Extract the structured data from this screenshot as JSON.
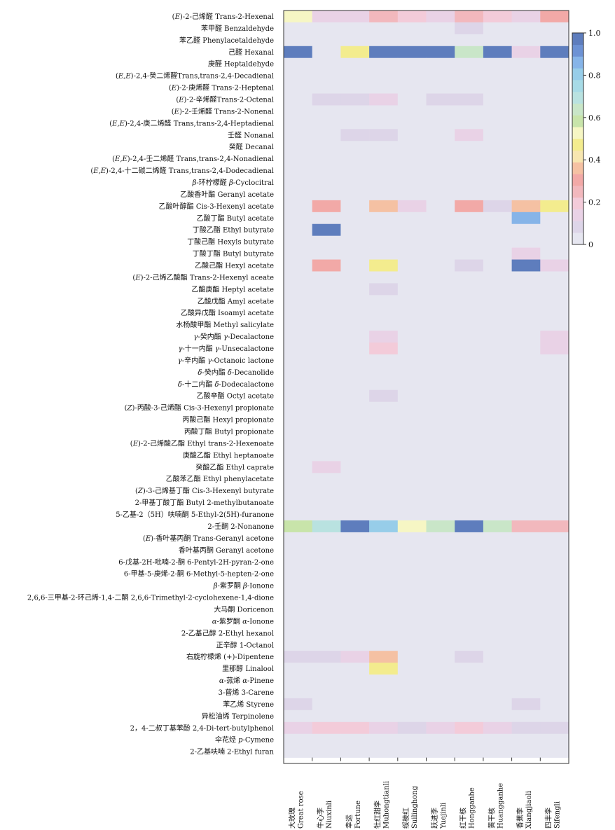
{
  "chart_data": {
    "type": "heatmap",
    "colorbar": {
      "min": 0,
      "max": 1,
      "ticks": [
        "0",
        "0.2",
        "0.4",
        "0.6",
        "0.8",
        "1.0"
      ],
      "colors": [
        "#e6e6f0",
        "#ddd5e8",
        "#e9d2e6",
        "#f3cbd9",
        "#f2b8bd",
        "#f2a9a7",
        "#f5c1a3",
        "#f7e6b0",
        "#f3ec8e",
        "#f6f6c4",
        "#c8e4aa",
        "#c9e6c8",
        "#b9e2e0",
        "#a7dbe6",
        "#97cde9",
        "#86b4e8",
        "#6d92d4",
        "#5e7dbd"
      ]
    },
    "columns": [
      {
        "zh": "大玫瑰",
        "en": "Great rose"
      },
      {
        "zh": "牛心李",
        "en": "Niuxinli"
      },
      {
        "zh": "幸运",
        "en": "Fortune"
      },
      {
        "zh": "牡红甜李",
        "en": "Muhongtianli"
      },
      {
        "zh": "绥棱红",
        "en": "Suilinghong"
      },
      {
        "zh": "跃进李",
        "en": "Yuejinli"
      },
      {
        "zh": "红干核",
        "en": "Hongganhe"
      },
      {
        "zh": "黄干核",
        "en": "Huangganhe"
      },
      {
        "zh": "香蕉李",
        "en": "Xiangjiaoli"
      },
      {
        "zh": "四丰李",
        "en": "Sifengli"
      }
    ],
    "rows": [
      {
        "label": "(E)-2-己烯醛 Trans-2-Hexenal",
        "values": [
          0.5,
          0.15,
          0.15,
          0.27,
          0.2,
          0.15,
          0.24,
          0.18,
          0.15,
          0.3
        ]
      },
      {
        "label": "苯甲醛 Benzaldehyde",
        "values": [
          0,
          0,
          0,
          0.05,
          0,
          0.05,
          0.1,
          0.05,
          0,
          0
        ]
      },
      {
        "label": "苯乙醛 Phenylacetaldehyde",
        "values": [
          0,
          0,
          0,
          0,
          0,
          0,
          0,
          0,
          0,
          0
        ]
      },
      {
        "label": "己醛 Hexanal",
        "values": [
          0.98,
          0,
          0.46,
          0.98,
          0.98,
          0.98,
          0.62,
          0.98,
          0.15,
          0.98
        ]
      },
      {
        "label": "庚醛 Heptaldehyde",
        "values": [
          0,
          0,
          0,
          0,
          0,
          0,
          0,
          0,
          0,
          0
        ]
      },
      {
        "label": "(E,E)-2,4-癸二烯醛Trans,trans-2,4-Decadienal",
        "values": [
          0,
          0,
          0,
          0,
          0,
          0,
          0,
          0,
          0,
          0
        ]
      },
      {
        "label": "(E)-2-庚烯醛 Trans-2-Heptenal",
        "values": [
          0,
          0.05,
          0,
          0.05,
          0,
          0,
          0,
          0,
          0,
          0
        ]
      },
      {
        "label": "(E)-2-辛烯醛Trans-2-Octenal",
        "values": [
          0,
          0.1,
          0.1,
          0.15,
          0.05,
          0.1,
          0.1,
          0.05,
          0,
          0.05
        ]
      },
      {
        "label": "(E)-2-壬烯醛 Trans-2-Nonenal",
        "values": [
          0,
          0,
          0,
          0,
          0,
          0,
          0,
          0,
          0,
          0
        ]
      },
      {
        "label": "(E,E)-2,4-庚二烯醛 Trans,trans-2,4-Heptadienal",
        "values": [
          0,
          0,
          0,
          0.05,
          0,
          0,
          0.05,
          0,
          0,
          0
        ]
      },
      {
        "label": "壬醛 Nonanal",
        "values": [
          0.05,
          0.05,
          0.1,
          0.1,
          0,
          0.05,
          0.15,
          0.05,
          0,
          0
        ]
      },
      {
        "label": "癸醛 Decanal",
        "values": [
          0,
          0,
          0,
          0.05,
          0,
          0,
          0,
          0,
          0,
          0
        ]
      },
      {
        "label": "(E,E)-2,4-壬二烯醛 Trans,trans-2,4-Nonadienal",
        "values": [
          0,
          0,
          0,
          0,
          0,
          0,
          0,
          0,
          0,
          0
        ]
      },
      {
        "label": "(E,E)-2,4-十二碳二烯醛 Trans,trans-2,4-Dodecadienal",
        "values": [
          0,
          0,
          0,
          0,
          0,
          0,
          0,
          0,
          0,
          0
        ]
      },
      {
        "label": "β-环柠檬醛 β-Cyclocitral",
        "values": [
          0,
          0,
          0,
          0,
          0,
          0.05,
          0.05,
          0,
          0,
          0
        ]
      },
      {
        "label": "乙酸香叶酯 Geranyl acetate",
        "values": [
          0,
          0,
          0,
          0,
          0,
          0,
          0,
          0,
          0,
          0
        ]
      },
      {
        "label": "乙酸叶醇酯 Cis-3-Hexenyl acetate",
        "values": [
          0,
          0.28,
          0,
          0.35,
          0.15,
          0,
          0.28,
          0.1,
          0.38,
          0.46
        ]
      },
      {
        "label": "乙酸丁酯 Butyl acetate",
        "values": [
          0,
          0,
          0,
          0,
          0,
          0,
          0,
          0,
          0.88,
          0
        ]
      },
      {
        "label": "丁酸乙酯 Ethyl butyrate",
        "values": [
          0,
          0.98,
          0,
          0,
          0,
          0,
          0,
          0,
          0,
          0
        ]
      },
      {
        "label": "丁酸己酯 Hexyls butyrate",
        "values": [
          0,
          0.05,
          0,
          0,
          0,
          0,
          0,
          0,
          0.05,
          0
        ]
      },
      {
        "label": "丁酸丁酯 Butyl butyrate",
        "values": [
          0,
          0,
          0,
          0,
          0,
          0,
          0,
          0,
          0.15,
          0
        ]
      },
      {
        "label": "乙酸己酯 Hexyl acetate",
        "values": [
          0,
          0.28,
          0,
          0.48,
          0,
          0,
          0.1,
          0,
          0.98,
          0.15
        ]
      },
      {
        "label": "(E)-2-己烯乙酸酯 Trans-2-Hexenyl aceate",
        "values": [
          0,
          0,
          0,
          0.05,
          0,
          0,
          0,
          0,
          0,
          0
        ]
      },
      {
        "label": "乙酸庚酯 Heptyl acetate",
        "values": [
          0,
          0,
          0,
          0.1,
          0,
          0,
          0,
          0,
          0,
          0
        ]
      },
      {
        "label": "乙酸戊酯 Amyl acetate",
        "values": [
          0,
          0,
          0,
          0,
          0,
          0,
          0,
          0,
          0,
          0
        ]
      },
      {
        "label": "乙酸异戊酯 Isoamyl acetate",
        "values": [
          0,
          0.05,
          0,
          0,
          0,
          0,
          0,
          0,
          0,
          0
        ]
      },
      {
        "label": "水杨酸甲酯 Methyl salicylate",
        "values": [
          0,
          0,
          0,
          0,
          0,
          0,
          0,
          0,
          0,
          0
        ]
      },
      {
        "label": "γ-癸内酯 γ-Decalactone",
        "values": [
          0,
          0.05,
          0,
          0.15,
          0,
          0,
          0,
          0,
          0,
          0.15
        ]
      },
      {
        "label": "γ-十一内酯 γ-Unsecalactone",
        "values": [
          0,
          0,
          0,
          0.2,
          0,
          0,
          0,
          0,
          0,
          0.12
        ]
      },
      {
        "label": "γ-辛内酯 γ-Octanoic lactone",
        "values": [
          0,
          0,
          0,
          0,
          0,
          0,
          0,
          0,
          0,
          0
        ]
      },
      {
        "label": "δ-癸内酯 δ-Decanolide",
        "values": [
          0,
          0,
          0,
          0,
          0,
          0,
          0,
          0,
          0,
          0
        ]
      },
      {
        "label": "δ-十二内酯 δ-Dodecalactone",
        "values": [
          0,
          0,
          0,
          0,
          0,
          0,
          0,
          0,
          0,
          0
        ]
      },
      {
        "label": "乙酸辛酯 Octyl acetate",
        "values": [
          0,
          0,
          0,
          0.1,
          0,
          0.05,
          0,
          0,
          0,
          0
        ]
      },
      {
        "label": "(Z)-丙酸-3-己烯酯 Cis-3-Hexenyl propionate",
        "values": [
          0,
          0,
          0,
          0,
          0,
          0,
          0,
          0,
          0,
          0
        ]
      },
      {
        "label": "丙酸己酯 Hexyl propionate",
        "values": [
          0,
          0,
          0,
          0,
          0,
          0,
          0,
          0,
          0,
          0
        ]
      },
      {
        "label": "丙酸丁酯 Butyl propionate",
        "values": [
          0,
          0,
          0,
          0,
          0,
          0,
          0,
          0,
          0.05,
          0
        ]
      },
      {
        "label": "(E)-2-己烯酸乙酯 Ethyl trans-2-Hexenoate",
        "values": [
          0,
          0.05,
          0,
          0,
          0,
          0,
          0,
          0,
          0,
          0
        ]
      },
      {
        "label": "庚酸乙酯 Ethyl heptanoate",
        "values": [
          0,
          0.05,
          0,
          0,
          0,
          0,
          0,
          0,
          0,
          0
        ]
      },
      {
        "label": "癸酸乙酯 Ethyl caprate",
        "values": [
          0,
          0.12,
          0,
          0,
          0,
          0,
          0,
          0,
          0,
          0
        ]
      },
      {
        "label": "乙酸苯乙酯 Ethyl phenylacetate",
        "values": [
          0,
          0,
          0,
          0,
          0,
          0,
          0,
          0,
          0,
          0
        ]
      },
      {
        "label": "(Z)-3-己烯基丁酯 Cis-3-Hexenyl butyrate",
        "values": [
          0,
          0,
          0,
          0,
          0,
          0,
          0,
          0,
          0,
          0
        ]
      },
      {
        "label": "2-甲基丁酸丁酯 Butyl 2-methylbutanoate",
        "values": [
          0,
          0,
          0,
          0,
          0,
          0,
          0,
          0,
          0,
          0
        ]
      },
      {
        "label": "5-乙基-2（5H）呋喃酮 5-Ethyl-2(5H)-furanone",
        "values": [
          0,
          0,
          0,
          0.05,
          0,
          0,
          0,
          0,
          0,
          0
        ]
      },
      {
        "label": "2-壬酮 2-Nonanone",
        "values": [
          0.56,
          0.7,
          0.98,
          0.78,
          0.5,
          0.65,
          0.98,
          0.65,
          0.25,
          0.25
        ]
      },
      {
        "label": "(E)-香叶基丙酮 Trans-Geranyl acetone",
        "values": [
          0,
          0,
          0,
          0,
          0,
          0,
          0,
          0,
          0,
          0
        ]
      },
      {
        "label": "香叶基丙酮 Geranyl acetone",
        "values": [
          0,
          0,
          0,
          0,
          0,
          0,
          0.05,
          0.05,
          0,
          0
        ]
      },
      {
        "label": "6-戊基-2H-吡喃-2-酮 6-Pentyl-2H-pyran-2-one",
        "values": [
          0,
          0,
          0,
          0,
          0,
          0,
          0,
          0,
          0,
          0
        ]
      },
      {
        "label": "6-甲基-5-庚烯-2-酮 6-Methyl-5-hepten-2-one",
        "values": [
          0,
          0,
          0,
          0,
          0,
          0,
          0,
          0,
          0,
          0
        ]
      },
      {
        "label": "β-紫罗酮 β-Ionone",
        "values": [
          0,
          0,
          0,
          0,
          0,
          0.05,
          0.05,
          0,
          0,
          0
        ]
      },
      {
        "label": "2,6,6-三甲基-2-环己烯-1,4-二酮 2,6,6-Trimethyl-2-cyclohexene-1,4-dione",
        "values": [
          0,
          0,
          0,
          0,
          0,
          0,
          0.05,
          0,
          0,
          0
        ]
      },
      {
        "label": "大马酮 Doricenon",
        "values": [
          0.05,
          0,
          0.05,
          0,
          0,
          0,
          0,
          0,
          0,
          0
        ]
      },
      {
        "label": "α-紫罗酮 α-Ionone",
        "values": [
          0,
          0,
          0,
          0,
          0,
          0,
          0,
          0,
          0,
          0
        ]
      },
      {
        "label": "2-乙基己醇 2-Ethyl hexanol",
        "values": [
          0,
          0,
          0,
          0,
          0,
          0,
          0,
          0,
          0,
          0
        ]
      },
      {
        "label": "正辛醇 1-Octanol",
        "values": [
          0,
          0,
          0,
          0,
          0,
          0,
          0,
          0,
          0,
          0
        ]
      },
      {
        "label": "右旋柠檬烯 (+)-Dipentene",
        "values": [
          0.1,
          0.1,
          0.15,
          0.35,
          0,
          0.05,
          0.1,
          0.05,
          0,
          0
        ]
      },
      {
        "label": "里那醇 Linalool",
        "values": [
          0,
          0,
          0.05,
          0.46,
          0,
          0,
          0.05,
          0,
          0,
          0
        ]
      },
      {
        "label": "α-蒎烯 α-Pinene",
        "values": [
          0,
          0,
          0,
          0,
          0,
          0,
          0,
          0,
          0,
          0
        ]
      },
      {
        "label": "3-蒈烯 3-Carene",
        "values": [
          0,
          0,
          0,
          0,
          0,
          0,
          0,
          0,
          0,
          0
        ]
      },
      {
        "label": "苯乙烯 Styrene",
        "values": [
          0.1,
          0,
          0,
          0,
          0,
          0,
          0,
          0,
          0.1,
          0
        ]
      },
      {
        "label": "异松油烯 Terpinolene",
        "values": [
          0,
          0,
          0,
          0,
          0,
          0,
          0,
          0,
          0,
          0
        ]
      },
      {
        "label": "2，4-二叔丁基苯酚 2,4-Di-tert-butylphenol",
        "values": [
          0.12,
          0.2,
          0.2,
          0.15,
          0.1,
          0.15,
          0.22,
          0.15,
          0.1,
          0.1
        ]
      },
      {
        "label": "伞花烃 p-Cymene",
        "values": [
          0,
          0,
          0,
          0,
          0,
          0,
          0,
          0,
          0,
          0
        ]
      },
      {
        "label": "2-乙基呋喃 2-Ethyl furan",
        "values": [
          0,
          0,
          0,
          0,
          0,
          0,
          0,
          0,
          0,
          0
        ]
      }
    ]
  }
}
